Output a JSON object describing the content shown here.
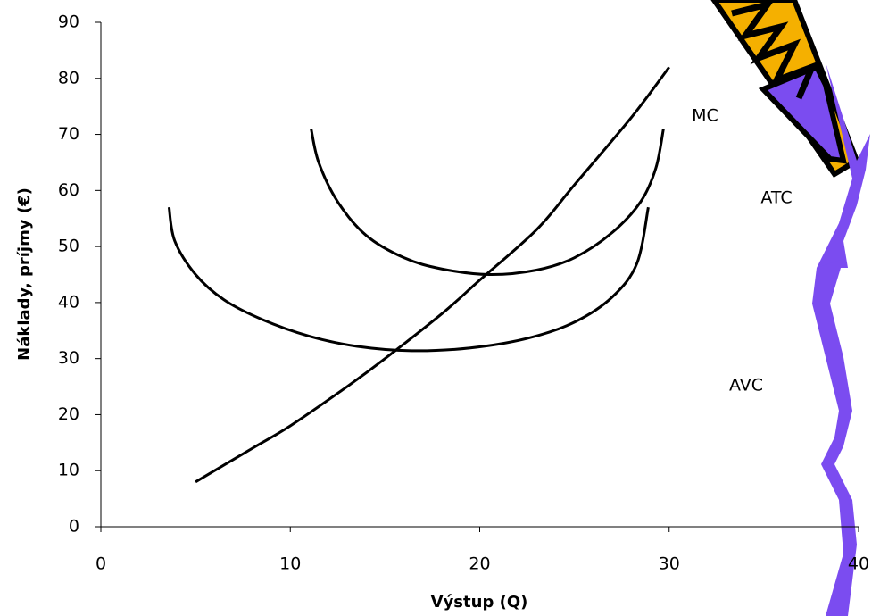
{
  "chart_data": {
    "type": "line",
    "xlabel": "Výstup (Q)",
    "ylabel": "Náklady,  príjmy (€)",
    "xlim": [
      0,
      40
    ],
    "ylim": [
      0,
      90
    ],
    "xticks": [
      0,
      10,
      20,
      30,
      40
    ],
    "yticks": [
      0,
      10,
      20,
      30,
      40,
      50,
      60,
      70,
      80,
      90
    ],
    "grid": false,
    "series": [
      {
        "name": "MC",
        "color": "#000000",
        "x": [
          5,
          8,
          10,
          13,
          15,
          18,
          20,
          23,
          25,
          28,
          30
        ],
        "values": [
          8,
          14,
          18,
          25,
          30,
          38,
          44,
          53,
          61,
          73,
          82
        ]
      },
      {
        "name": "ATC",
        "color": "#000000",
        "x": [
          11.1,
          11.5,
          12.5,
          14,
          16,
          18,
          20.5,
          23,
          25,
          27,
          28.5,
          29.3,
          29.7
        ],
        "values": [
          71,
          65,
          58,
          52,
          48,
          46,
          45,
          45.8,
          48,
          52.5,
          58,
          64,
          71
        ]
      },
      {
        "name": "AVC",
        "color": "#000000",
        "x": [
          3.6,
          3.9,
          5,
          6.5,
          8.5,
          11,
          13.5,
          16.4,
          19.5,
          22.5,
          25,
          27,
          28.3,
          28.9
        ],
        "values": [
          57,
          51,
          45,
          40.5,
          37,
          34,
          32.2,
          31.4,
          31.9,
          33.6,
          36.5,
          41,
          47,
          57
        ]
      }
    ],
    "annotations": [
      {
        "text": "MC"
      },
      {
        "text": "ATC"
      },
      {
        "text": "AVC"
      }
    ]
  }
}
